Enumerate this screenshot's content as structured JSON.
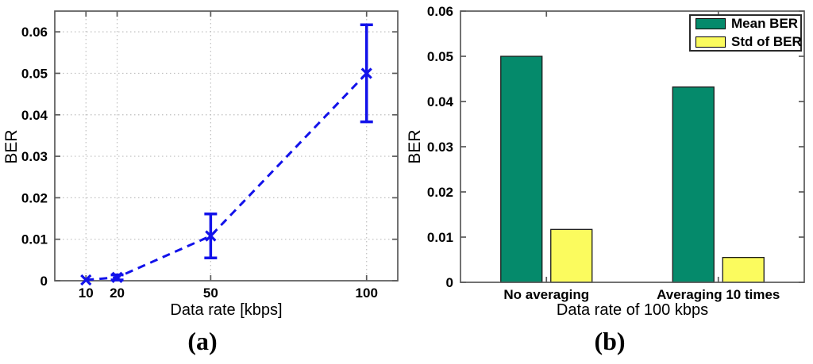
{
  "figure": {
    "background": "#ffffff",
    "captions": {
      "a": "(a)",
      "b": "(b)"
    }
  },
  "colors": {
    "line_blue": "#1212EA",
    "grid_gray": "#BFBFBF",
    "axis_gray": "#5A5A5A",
    "bar_edge": "#1A1A1A",
    "text_black": "#000000"
  },
  "chart_data": [
    {
      "type": "line",
      "panel": "a",
      "xlabel": "Data rate [kbps]",
      "ylabel": "BER",
      "x": [
        10,
        20,
        50,
        100
      ],
      "y": [
        0.0002,
        0.0008,
        0.0108,
        0.05
      ],
      "yerr": [
        0,
        0.0006,
        0.0053,
        0.0117
      ],
      "xlim": [
        0,
        110
      ],
      "ylim": [
        0,
        0.065
      ],
      "xticks": [
        10,
        20,
        50,
        100
      ],
      "xticklabels": [
        "10",
        "20",
        "50",
        "100"
      ],
      "yticks": [
        0,
        0.01,
        0.02,
        0.03,
        0.04,
        0.05,
        0.06
      ],
      "yticklabels": [
        "0",
        "0.01",
        "0.02",
        "0.03",
        "0.04",
        "0.05",
        "0.06"
      ],
      "grid": true,
      "line_style": "dashed",
      "marker": "x",
      "line_color": "#1212EA"
    },
    {
      "type": "bar",
      "panel": "b",
      "xlabel": "Data rate of 100 kbps",
      "ylabel": "BER",
      "categories": [
        "No averaging",
        "Averaging 10 times"
      ],
      "series": [
        {
          "name": "Mean BER",
          "values": [
            0.05,
            0.0432
          ],
          "color": "#058A6B"
        },
        {
          "name": "Std of BER",
          "values": [
            0.0117,
            0.0055
          ],
          "color": "#FBFB5E"
        }
      ],
      "ylim": [
        0,
        0.06
      ],
      "yticks": [
        0,
        0.01,
        0.02,
        0.03,
        0.04,
        0.05,
        0.06
      ],
      "yticklabels": [
        "0",
        "0.01",
        "0.02",
        "0.03",
        "0.04",
        "0.05",
        "0.06"
      ],
      "grid": false,
      "legend_position": "top-right"
    }
  ]
}
